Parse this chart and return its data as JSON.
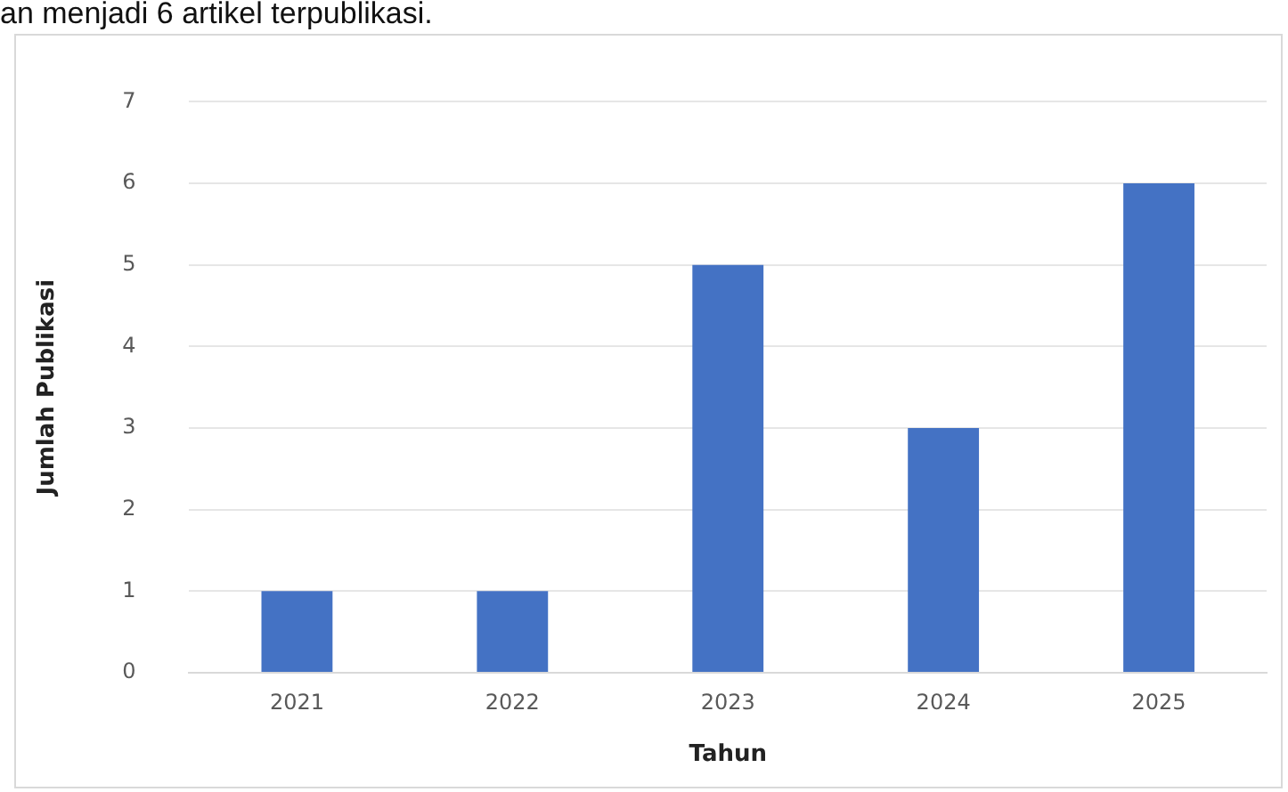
{
  "chart_data": {
    "type": "bar",
    "annotations": [
      "an menjadi 6 artikel terpublikasi."
    ],
    "xlabel": "Tahun",
    "ylabel": "Jumlah Publikasi",
    "categories": [
      "2021",
      "2022",
      "2023",
      "2024",
      "2025"
    ],
    "values": [
      1,
      1,
      5,
      3,
      6
    ],
    "color": "#4472c4",
    "ylim": [
      0,
      7
    ],
    "yticks": [
      0,
      1,
      2,
      3,
      4,
      5,
      6,
      7
    ],
    "grid": "y",
    "legend": false
  }
}
